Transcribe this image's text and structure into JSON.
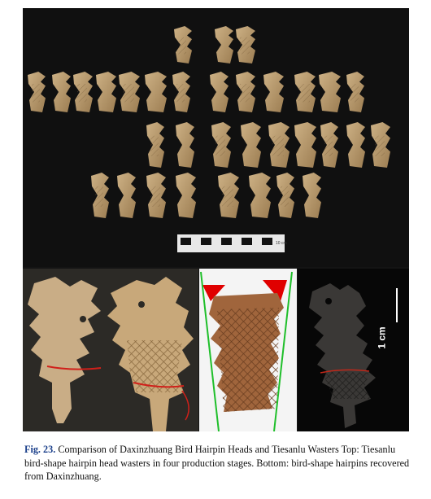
{
  "figure": {
    "scale_bar_label": "1 cm",
    "ruler_label": "10 cm"
  },
  "caption": {
    "label": "Fig. 23.",
    "title": "Comparison of Daxinzhuang Bird Hairpin Heads and Tiesanlu Wasters",
    "text": "Top: Tiesanlu bird-shape hairpin head wasters in four production stages. Bottom: bird-shape hairpins recovered from Daxinzhuang."
  },
  "colors": {
    "bone": "#b59468",
    "bone_light": "#d8c3a0",
    "background": "#141414",
    "caption_label": "#1a3f8a",
    "red_marker": "#e00000",
    "green_line": "#1fbf2a"
  }
}
